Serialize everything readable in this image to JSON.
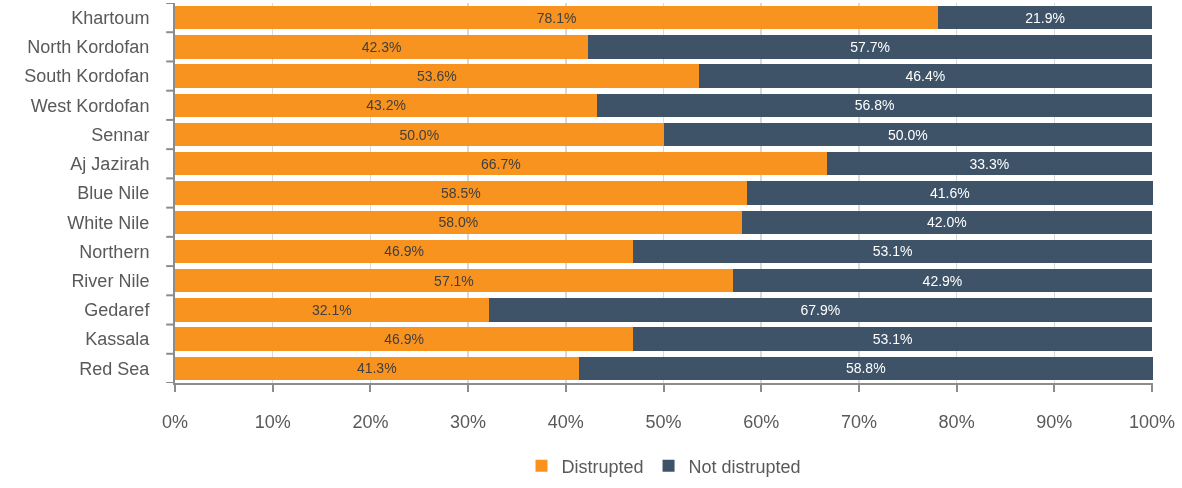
{
  "chart_data": {
    "type": "bar",
    "orientation": "horizontal",
    "stacked": true,
    "categories": [
      "Khartoum",
      "North Kordofan",
      "South Kordofan",
      "West Kordofan",
      "Sennar",
      "Aj Jazirah",
      "Blue Nile",
      "White Nile",
      "Northern",
      "River Nile",
      "Gedaref",
      "Kassala",
      "Red Sea"
    ],
    "series": [
      {
        "name": "Distrupted",
        "color": "#f7931e",
        "values": [
          78.1,
          42.3,
          53.6,
          43.2,
          50.0,
          66.7,
          58.5,
          58.0,
          46.9,
          57.1,
          32.1,
          46.9,
          41.3
        ],
        "value_labels": [
          "78.1%",
          "42.3%",
          "53.6%",
          "43.2%",
          "50.0%",
          "66.7%",
          "58.5%",
          "58.0%",
          "46.9%",
          "57.1%",
          "32.1%",
          "46.9%",
          "41.3%"
        ]
      },
      {
        "name": "Not distrupted",
        "color": "#3e5368",
        "values": [
          21.9,
          57.7,
          46.4,
          56.8,
          50.0,
          33.3,
          41.6,
          42.0,
          53.1,
          42.9,
          67.9,
          53.1,
          58.8
        ],
        "value_labels": [
          "21.9%",
          "57.7%",
          "46.4%",
          "56.8%",
          "50.0%",
          "33.3%",
          "41.6%",
          "42.0%",
          "53.1%",
          "42.9%",
          "67.9%",
          "53.1%",
          "58.8%"
        ]
      }
    ],
    "xlim": [
      0,
      100.1
    ],
    "xticks": [
      {
        "value": 0,
        "label": "0%"
      },
      {
        "value": 10,
        "label": "10%"
      },
      {
        "value": 20,
        "label": "20%"
      },
      {
        "value": 30,
        "label": "30%"
      },
      {
        "value": 40,
        "label": "40%"
      },
      {
        "value": 50,
        "label": "50%"
      },
      {
        "value": 60,
        "label": "60%"
      },
      {
        "value": 70,
        "label": "70%"
      },
      {
        "value": 80,
        "label": "80%"
      },
      {
        "value": 90,
        "label": "90%"
      },
      {
        "value": 100,
        "label": "100%"
      }
    ],
    "grid": "x",
    "legend": "bottom"
  }
}
